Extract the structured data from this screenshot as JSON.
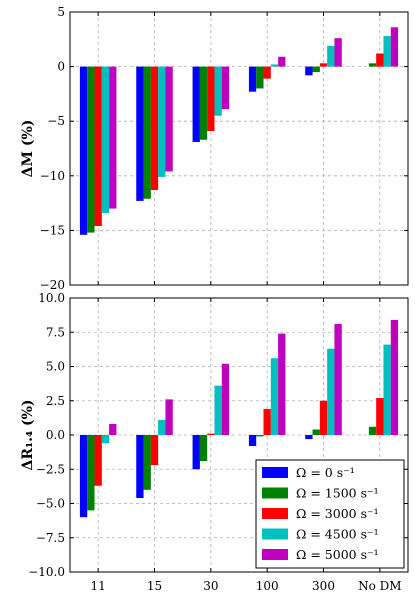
{
  "chart_data": [
    {
      "type": "bar",
      "categories": [
        "11",
        "15",
        "30",
        "100",
        "300",
        "No DM"
      ],
      "ylabel": "ΔM (%)",
      "ylim": [
        -20,
        5
      ],
      "yticks": [
        5,
        0,
        -5,
        -10,
        -15,
        -20
      ],
      "ytick_labels": [
        "5",
        "0",
        "−5",
        "−10",
        "−15",
        "−20"
      ],
      "grid": true,
      "series": [
        {
          "name": "Ω = 0 s⁻¹",
          "color": "#0000ff",
          "values": [
            -15.4,
            -12.3,
            -6.9,
            -2.3,
            -0.8,
            0.0
          ]
        },
        {
          "name": "Ω = 1500 s⁻¹",
          "color": "#008000",
          "values": [
            -15.2,
            -12.1,
            -6.7,
            -2.0,
            -0.5,
            0.3
          ]
        },
        {
          "name": "Ω = 3000 s⁻¹",
          "color": "#ff0000",
          "values": [
            -14.6,
            -11.3,
            -5.9,
            -1.1,
            0.3,
            1.2
          ]
        },
        {
          "name": "Ω = 4500 s⁻¹",
          "color": "#00bfbf",
          "values": [
            -13.4,
            -10.1,
            -4.5,
            0.2,
            1.9,
            2.8
          ]
        },
        {
          "name": "Ω = 5000 s⁻¹",
          "color": "#bf00bf",
          "values": [
            -13.0,
            -9.6,
            -3.9,
            0.9,
            2.6,
            3.6
          ]
        }
      ]
    },
    {
      "type": "bar",
      "categories": [
        "11",
        "15",
        "30",
        "100",
        "300",
        "No DM"
      ],
      "ylabel": "ΔR₁.₄ (%)",
      "ylim": [
        -10,
        10
      ],
      "yticks": [
        10,
        7.5,
        5,
        2.5,
        0,
        -2.5,
        -5,
        -7.5,
        -10
      ],
      "ytick_labels": [
        "10.0",
        "7.5",
        "5.0",
        "2.5",
        "0.0",
        "−2.5",
        "−5.0",
        "−7.5",
        "−10.0"
      ],
      "grid": true,
      "legend": "bottom-right",
      "series": [
        {
          "name": "Ω = 0 s⁻¹",
          "color": "#0000ff",
          "values": [
            -6.0,
            -4.6,
            -2.5,
            -0.8,
            -0.3,
            0.0
          ]
        },
        {
          "name": "Ω = 1500 s⁻¹",
          "color": "#008000",
          "values": [
            -5.5,
            -4.0,
            -1.9,
            -0.1,
            0.4,
            0.6
          ]
        },
        {
          "name": "Ω = 3000 s⁻¹",
          "color": "#ff0000",
          "values": [
            -3.7,
            -2.2,
            0.1,
            1.9,
            2.5,
            2.7
          ]
        },
        {
          "name": "Ω = 4500 s⁻¹",
          "color": "#00bfbf",
          "values": [
            -0.6,
            1.1,
            3.6,
            5.6,
            6.3,
            6.6
          ]
        },
        {
          "name": "Ω = 5000 s⁻¹",
          "color": "#bf00bf",
          "values": [
            0.8,
            2.6,
            5.2,
            7.4,
            8.1,
            8.4
          ]
        }
      ]
    }
  ]
}
